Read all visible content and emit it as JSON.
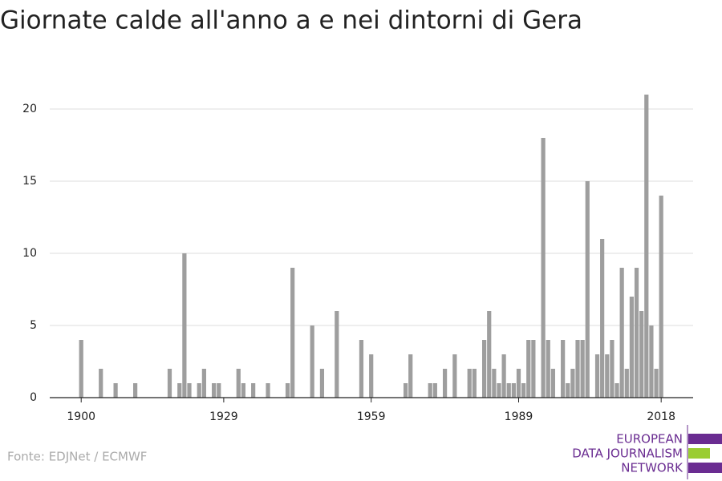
{
  "chart_data": {
    "type": "bar",
    "title": "Giornate calde all'anno a e nei dintorni di Gera",
    "x": [
      1900,
      1904,
      1907,
      1911,
      1918,
      1920,
      1921,
      1922,
      1924,
      1925,
      1927,
      1928,
      1932,
      1933,
      1935,
      1938,
      1942,
      1943,
      1947,
      1949,
      1952,
      1957,
      1959,
      1966,
      1967,
      1971,
      1972,
      1974,
      1976,
      1979,
      1980,
      1982,
      1983,
      1984,
      1985,
      1986,
      1987,
      1988,
      1989,
      1990,
      1991,
      1992,
      1994,
      1995,
      1996,
      1998,
      1999,
      2000,
      2001,
      2002,
      2003,
      2005,
      2006,
      2007,
      2008,
      2009,
      2010,
      2011,
      2012,
      2013,
      2014,
      2015,
      2016,
      2017,
      2018
    ],
    "values": [
      4,
      2,
      1,
      1,
      2,
      1,
      10,
      1,
      1,
      2,
      1,
      1,
      2,
      1,
      1,
      1,
      1,
      9,
      5,
      2,
      6,
      4,
      3,
      1,
      3,
      1,
      1,
      2,
      3,
      2,
      2,
      4,
      6,
      2,
      1,
      3,
      1,
      1,
      2,
      1,
      4,
      4,
      18,
      4,
      2,
      4,
      1,
      2,
      4,
      4,
      15,
      3,
      11,
      3,
      4,
      1,
      9,
      2,
      7,
      9,
      6,
      21,
      5,
      2,
      14
    ],
    "color": "#9e9e9e",
    "xlim": [
      1893.6,
      2024.5
    ],
    "xticks": [
      1900,
      1929,
      1959,
      1989,
      2018
    ],
    "ylim": [
      0,
      22
    ],
    "yticks": [
      0,
      5,
      10,
      15,
      20
    ],
    "grid": true,
    "source": "Fonte: EDJNet / ECMWF",
    "logo": [
      "EUROPEAN",
      "DATA JOURNALISM",
      "NETWORK"
    ]
  }
}
